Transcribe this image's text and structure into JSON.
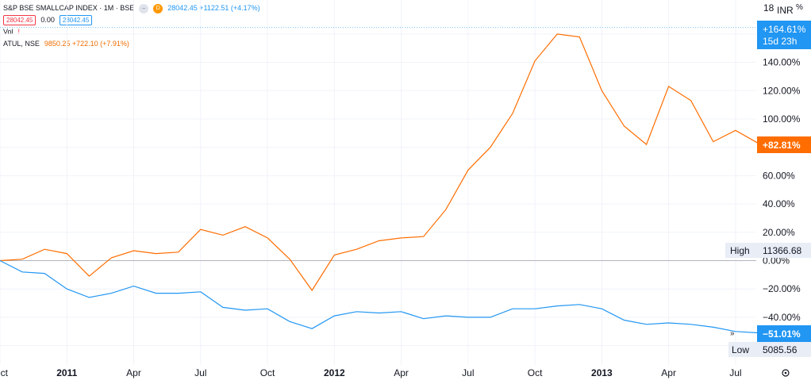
{
  "legend": {
    "main_symbol": "S&P BSE SMALLCAP INDEX · 1M · BSE",
    "main_last": "28042.45  +1122.51 (+4.17%)",
    "bid": "28042.45",
    "spread": "0.00",
    "ask": "28042.45",
    "vol_label": "Vol",
    "compare_symbol": "ATUL, NSE",
    "compare_values": "9850.25  +722.10 (+7.91%)"
  },
  "price_scale": {
    "currency": "INR",
    "pct_symbol": "%",
    "top_partial": "18",
    "main_badge_value": "+164.61%",
    "main_badge_countdown": "15d 23h",
    "compare_badge_value": "+82.81%",
    "low_badge_value": "−51.01%",
    "high_label": "High",
    "high_value": "11366.68",
    "low_label": "Low",
    "low_value": "5085.56",
    "settings_icon": "gear-icon"
  },
  "colors": {
    "main_series": "#2196f3",
    "compare_series": "#ff6d00",
    "zero_line": "#b2b5be",
    "grid": "#f0f3fa"
  },
  "chart_data": {
    "type": "line",
    "y_unit": "%",
    "ylim": [
      -65,
      180
    ],
    "y_ticks": [
      160,
      140,
      120,
      100,
      80,
      60,
      40,
      20,
      0,
      -20,
      -40,
      -60
    ],
    "y_tick_labels": [
      "160.00%",
      "140.00%",
      "120.00%",
      "100.00%",
      "",
      "60.00%",
      "40.00%",
      "20.00%",
      "0.00%",
      "−20.00%",
      "−40.00%",
      ""
    ],
    "x": [
      "2010-10",
      "2010-11",
      "2010-12",
      "2011-01",
      "2011-02",
      "2011-03",
      "2011-04",
      "2011-05",
      "2011-06",
      "2011-07",
      "2011-08",
      "2011-09",
      "2011-10",
      "2011-11",
      "2011-12",
      "2012-01",
      "2012-02",
      "2012-03",
      "2012-04",
      "2012-05",
      "2012-06",
      "2012-07",
      "2012-08",
      "2012-09",
      "2012-10",
      "2012-11",
      "2012-12",
      "2013-01",
      "2013-02",
      "2013-03",
      "2013-04",
      "2013-05",
      "2013-06",
      "2013-07",
      "2013-08"
    ],
    "x_tick_labels": [
      {
        "x": "2010-10",
        "label": "ct",
        "bold": false
      },
      {
        "x": "2011-01",
        "label": "2011",
        "bold": true
      },
      {
        "x": "2011-04",
        "label": "Apr",
        "bold": false
      },
      {
        "x": "2011-07",
        "label": "Jul",
        "bold": false
      },
      {
        "x": "2011-10",
        "label": "Oct",
        "bold": false
      },
      {
        "x": "2012-01",
        "label": "2012",
        "bold": true
      },
      {
        "x": "2012-04",
        "label": "Apr",
        "bold": false
      },
      {
        "x": "2012-07",
        "label": "Jul",
        "bold": false
      },
      {
        "x": "2012-10",
        "label": "Oct",
        "bold": false
      },
      {
        "x": "2013-01",
        "label": "2013",
        "bold": true
      },
      {
        "x": "2013-04",
        "label": "Apr",
        "bold": false
      },
      {
        "x": "2013-07",
        "label": "Jul",
        "bold": false
      }
    ],
    "series": [
      {
        "name": "ATUL, NSE",
        "values": [
          0,
          1,
          8,
          5,
          -11,
          2,
          7,
          5,
          6,
          22,
          18,
          24,
          16,
          1,
          -21,
          4,
          8,
          14,
          16,
          17,
          36,
          64,
          80,
          104,
          141,
          160,
          158,
          120,
          95,
          82,
          123,
          113,
          84,
          92,
          83
        ]
      },
      {
        "name": "S&P BSE SMALLCAP INDEX",
        "values": [
          0,
          -8,
          -9,
          -20,
          -26,
          -23,
          -18,
          -23,
          -23,
          -22,
          -33,
          -35,
          -34,
          -43,
          -48,
          -39,
          -36,
          -37,
          -36,
          -41,
          -39,
          -40,
          -40,
          -34,
          -34,
          -32,
          -31,
          -34,
          -42,
          -45,
          -44,
          -45,
          -47,
          -50,
          -51
        ]
      }
    ]
  }
}
